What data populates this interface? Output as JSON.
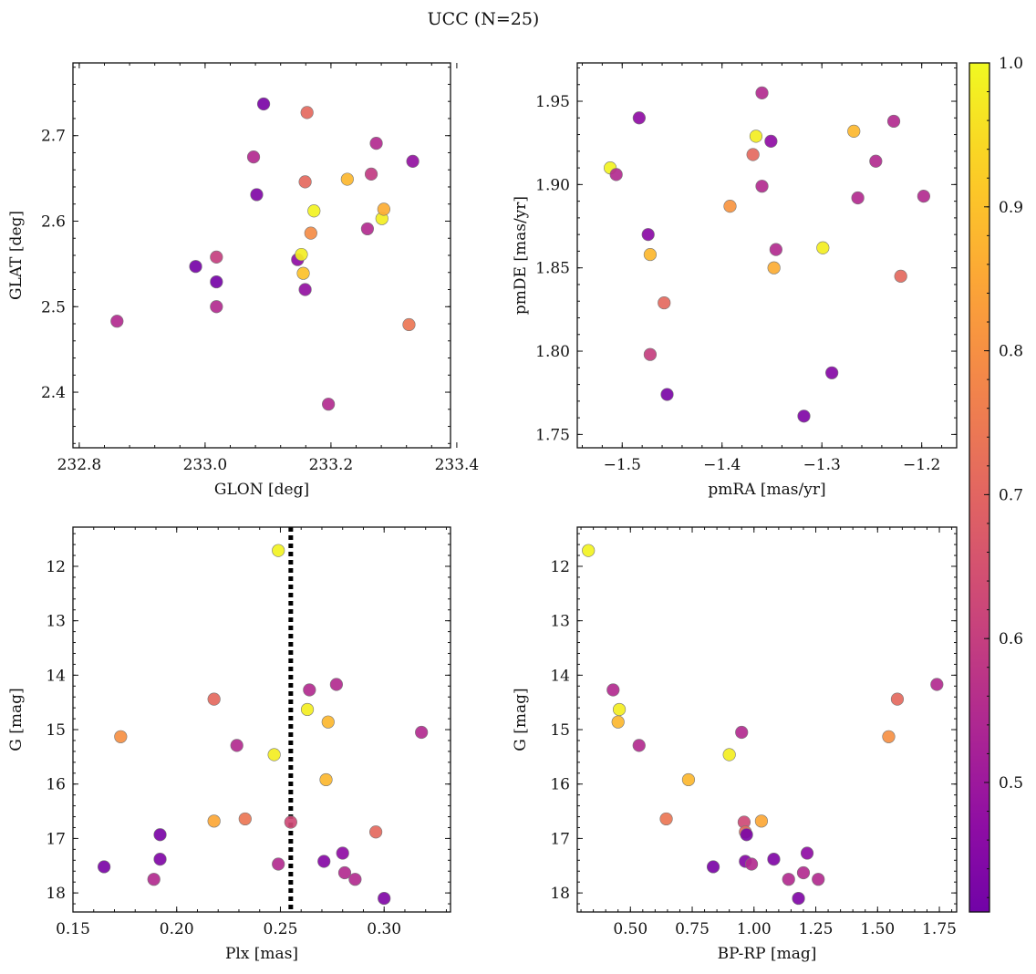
{
  "figure": {
    "title": "UCC (N=25)"
  },
  "colorbar": {
    "min": 0.41,
    "max": 1.0,
    "ticks": [
      0.5,
      0.6,
      0.7,
      0.8,
      0.9,
      1.0
    ],
    "tick_labels": [
      "0.5",
      "0.6",
      "0.7",
      "0.8",
      "0.9",
      "1.0"
    ],
    "colormap": "plasma"
  },
  "chart_data": [
    {
      "type": "scatter",
      "xlabel": "GLON [deg]",
      "ylabel": "GLAT [deg]",
      "xlim": [
        232.79,
        233.39
      ],
      "ylim": [
        2.335,
        2.785
      ],
      "y_inverted": false,
      "xticks": [
        232.8,
        233.0,
        233.2,
        233.4
      ],
      "xtick_labels": [
        "232.8",
        "233.0",
        "233.2",
        "233.4"
      ],
      "yticks": [
        2.4,
        2.5,
        2.6,
        2.7
      ],
      "ytick_labels": [
        "2.4",
        "2.5",
        "2.6",
        "2.7"
      ],
      "points": [
        {
          "x": 232.86,
          "y": 2.483,
          "c": 0.55
        },
        {
          "x": 232.985,
          "y": 2.547,
          "c": 0.42
        },
        {
          "x": 233.018,
          "y": 2.529,
          "c": 0.42
        },
        {
          "x": 233.018,
          "y": 2.5,
          "c": 0.55
        },
        {
          "x": 233.018,
          "y": 2.558,
          "c": 0.6
        },
        {
          "x": 233.077,
          "y": 2.675,
          "c": 0.55
        },
        {
          "x": 233.082,
          "y": 2.631,
          "c": 0.44
        },
        {
          "x": 233.093,
          "y": 2.737,
          "c": 0.43
        },
        {
          "x": 233.147,
          "y": 2.555,
          "c": 0.47
        },
        {
          "x": 233.153,
          "y": 2.561,
          "c": 0.98
        },
        {
          "x": 233.156,
          "y": 2.539,
          "c": 0.9
        },
        {
          "x": 233.159,
          "y": 2.646,
          "c": 0.71
        },
        {
          "x": 233.159,
          "y": 2.52,
          "c": 0.48
        },
        {
          "x": 233.162,
          "y": 2.727,
          "c": 0.71
        },
        {
          "x": 233.168,
          "y": 2.586,
          "c": 0.79
        },
        {
          "x": 233.173,
          "y": 2.612,
          "c": 0.99
        },
        {
          "x": 233.196,
          "y": 2.386,
          "c": 0.55
        },
        {
          "x": 233.226,
          "y": 2.649,
          "c": 0.88
        },
        {
          "x": 233.258,
          "y": 2.591,
          "c": 0.55
        },
        {
          "x": 233.264,
          "y": 2.655,
          "c": 0.59
        },
        {
          "x": 233.272,
          "y": 2.691,
          "c": 0.55
        },
        {
          "x": 233.281,
          "y": 2.603,
          "c": 0.98
        },
        {
          "x": 233.284,
          "y": 2.614,
          "c": 0.86
        },
        {
          "x": 233.324,
          "y": 2.479,
          "c": 0.74
        },
        {
          "x": 233.33,
          "y": 2.67,
          "c": 0.48
        }
      ]
    },
    {
      "type": "scatter",
      "xlabel": "pmRA [mas/yr]",
      "ylabel": "pmDE [mas/yr]",
      "xlim": [
        -1.545,
        -1.165
      ],
      "ylim": [
        1.742,
        1.973
      ],
      "y_inverted": false,
      "xticks": [
        -1.5,
        -1.4,
        -1.3,
        -1.2
      ],
      "xtick_labels": [
        "−1.5",
        "−1.4",
        "−1.3",
        "−1.2"
      ],
      "yticks": [
        1.75,
        1.8,
        1.85,
        1.9,
        1.95
      ],
      "ytick_labels": [
        "1.75",
        "1.80",
        "1.85",
        "1.90",
        "1.95"
      ],
      "points": [
        {
          "x": -1.512,
          "y": 1.91,
          "c": 0.99
        },
        {
          "x": -1.506,
          "y": 1.906,
          "c": 0.55
        },
        {
          "x": -1.483,
          "y": 1.94,
          "c": 0.47
        },
        {
          "x": -1.474,
          "y": 1.87,
          "c": 0.46
        },
        {
          "x": -1.472,
          "y": 1.858,
          "c": 0.88
        },
        {
          "x": -1.472,
          "y": 1.798,
          "c": 0.6
        },
        {
          "x": -1.458,
          "y": 1.829,
          "c": 0.71
        },
        {
          "x": -1.455,
          "y": 1.774,
          "c": 0.43
        },
        {
          "x": -1.392,
          "y": 1.887,
          "c": 0.81
        },
        {
          "x": -1.369,
          "y": 1.918,
          "c": 0.71
        },
        {
          "x": -1.366,
          "y": 1.929,
          "c": 0.98
        },
        {
          "x": -1.36,
          "y": 1.955,
          "c": 0.55
        },
        {
          "x": -1.36,
          "y": 1.899,
          "c": 0.55
        },
        {
          "x": -1.351,
          "y": 1.926,
          "c": 0.47
        },
        {
          "x": -1.348,
          "y": 1.85,
          "c": 0.86
        },
        {
          "x": -1.346,
          "y": 1.861,
          "c": 0.55
        },
        {
          "x": -1.318,
          "y": 1.761,
          "c": 0.44
        },
        {
          "x": -1.299,
          "y": 1.862,
          "c": 0.98
        },
        {
          "x": -1.29,
          "y": 1.787,
          "c": 0.45
        },
        {
          "x": -1.268,
          "y": 1.932,
          "c": 0.88
        },
        {
          "x": -1.264,
          "y": 1.892,
          "c": 0.55
        },
        {
          "x": -1.246,
          "y": 1.914,
          "c": 0.55
        },
        {
          "x": -1.228,
          "y": 1.938,
          "c": 0.55
        },
        {
          "x": -1.221,
          "y": 1.845,
          "c": 0.71
        },
        {
          "x": -1.198,
          "y": 1.893,
          "c": 0.55
        }
      ]
    },
    {
      "type": "scatter",
      "xlabel": "Plx [mas]",
      "ylabel": "G [mag]",
      "xlim": [
        0.15,
        0.332
      ],
      "ylim": [
        11.28,
        18.35
      ],
      "y_inverted": true,
      "vline": {
        "x": 0.255,
        "style": "dotted"
      },
      "xticks": [
        0.15,
        0.2,
        0.25,
        0.3
      ],
      "xtick_labels": [
        "0.15",
        "0.20",
        "0.25",
        "0.30"
      ],
      "yticks": [
        12,
        13,
        14,
        15,
        16,
        17,
        18
      ],
      "ytick_labels": [
        "12",
        "13",
        "14",
        "15",
        "16",
        "17",
        "18"
      ],
      "points": [
        {
          "x": 0.165,
          "y": 17.52,
          "c": 0.43
        },
        {
          "x": 0.173,
          "y": 15.13,
          "c": 0.8
        },
        {
          "x": 0.189,
          "y": 17.75,
          "c": 0.55
        },
        {
          "x": 0.192,
          "y": 16.93,
          "c": 0.43
        },
        {
          "x": 0.192,
          "y": 17.38,
          "c": 0.44
        },
        {
          "x": 0.218,
          "y": 14.44,
          "c": 0.71
        },
        {
          "x": 0.218,
          "y": 16.68,
          "c": 0.85
        },
        {
          "x": 0.229,
          "y": 15.29,
          "c": 0.55
        },
        {
          "x": 0.233,
          "y": 16.64,
          "c": 0.74
        },
        {
          "x": 0.247,
          "y": 15.46,
          "c": 0.98
        },
        {
          "x": 0.249,
          "y": 11.71,
          "c": 0.99
        },
        {
          "x": 0.249,
          "y": 17.47,
          "c": 0.55
        },
        {
          "x": 0.255,
          "y": 16.7,
          "c": 0.63
        },
        {
          "x": 0.263,
          "y": 14.63,
          "c": 0.98
        },
        {
          "x": 0.264,
          "y": 14.27,
          "c": 0.55
        },
        {
          "x": 0.271,
          "y": 17.42,
          "c": 0.45
        },
        {
          "x": 0.272,
          "y": 15.92,
          "c": 0.88
        },
        {
          "x": 0.273,
          "y": 14.86,
          "c": 0.88
        },
        {
          "x": 0.277,
          "y": 14.17,
          "c": 0.55
        },
        {
          "x": 0.28,
          "y": 17.27,
          "c": 0.47
        },
        {
          "x": 0.281,
          "y": 17.63,
          "c": 0.55
        },
        {
          "x": 0.286,
          "y": 17.75,
          "c": 0.55
        },
        {
          "x": 0.296,
          "y": 16.88,
          "c": 0.71
        },
        {
          "x": 0.3,
          "y": 18.1,
          "c": 0.44
        },
        {
          "x": 0.318,
          "y": 15.05,
          "c": 0.55
        }
      ]
    },
    {
      "type": "scatter",
      "xlabel": "BP-RP [mag]",
      "ylabel": "G [mag]",
      "xlim": [
        0.285,
        1.82
      ],
      "ylim": [
        11.28,
        18.35
      ],
      "y_inverted": true,
      "xticks": [
        0.5,
        0.75,
        1.0,
        1.25,
        1.5,
        1.75
      ],
      "xtick_labels": [
        "0.50",
        "0.75",
        "1.00",
        "1.25",
        "1.50",
        "1.75"
      ],
      "yticks": [
        12,
        13,
        14,
        15,
        16,
        17,
        18
      ],
      "ytick_labels": [
        "12",
        "13",
        "14",
        "15",
        "16",
        "17",
        "18"
      ],
      "points": [
        {
          "x": 0.33,
          "y": 11.71,
          "c": 0.99
        },
        {
          "x": 0.43,
          "y": 14.27,
          "c": 0.55
        },
        {
          "x": 0.455,
          "y": 14.63,
          "c": 0.98
        },
        {
          "x": 0.45,
          "y": 14.86,
          "c": 0.88
        },
        {
          "x": 0.535,
          "y": 15.29,
          "c": 0.55
        },
        {
          "x": 0.735,
          "y": 15.92,
          "c": 0.88
        },
        {
          "x": 0.645,
          "y": 16.64,
          "c": 0.74
        },
        {
          "x": 0.835,
          "y": 17.52,
          "c": 0.43
        },
        {
          "x": 0.9,
          "y": 15.46,
          "c": 0.98
        },
        {
          "x": 0.95,
          "y": 15.05,
          "c": 0.55
        },
        {
          "x": 0.96,
          "y": 16.7,
          "c": 0.63
        },
        {
          "x": 0.965,
          "y": 16.88,
          "c": 0.71
        },
        {
          "x": 0.97,
          "y": 16.93,
          "c": 0.43
        },
        {
          "x": 0.965,
          "y": 17.42,
          "c": 0.45
        },
        {
          "x": 0.99,
          "y": 17.47,
          "c": 0.55
        },
        {
          "x": 1.03,
          "y": 16.68,
          "c": 0.85
        },
        {
          "x": 1.08,
          "y": 17.38,
          "c": 0.44
        },
        {
          "x": 1.14,
          "y": 17.75,
          "c": 0.55
        },
        {
          "x": 1.18,
          "y": 18.1,
          "c": 0.44
        },
        {
          "x": 1.2,
          "y": 17.63,
          "c": 0.55
        },
        {
          "x": 1.215,
          "y": 17.27,
          "c": 0.47
        },
        {
          "x": 1.26,
          "y": 17.75,
          "c": 0.55
        },
        {
          "x": 1.545,
          "y": 15.13,
          "c": 0.8
        },
        {
          "x": 1.58,
          "y": 14.44,
          "c": 0.71
        },
        {
          "x": 1.74,
          "y": 14.17,
          "c": 0.55
        }
      ]
    }
  ]
}
